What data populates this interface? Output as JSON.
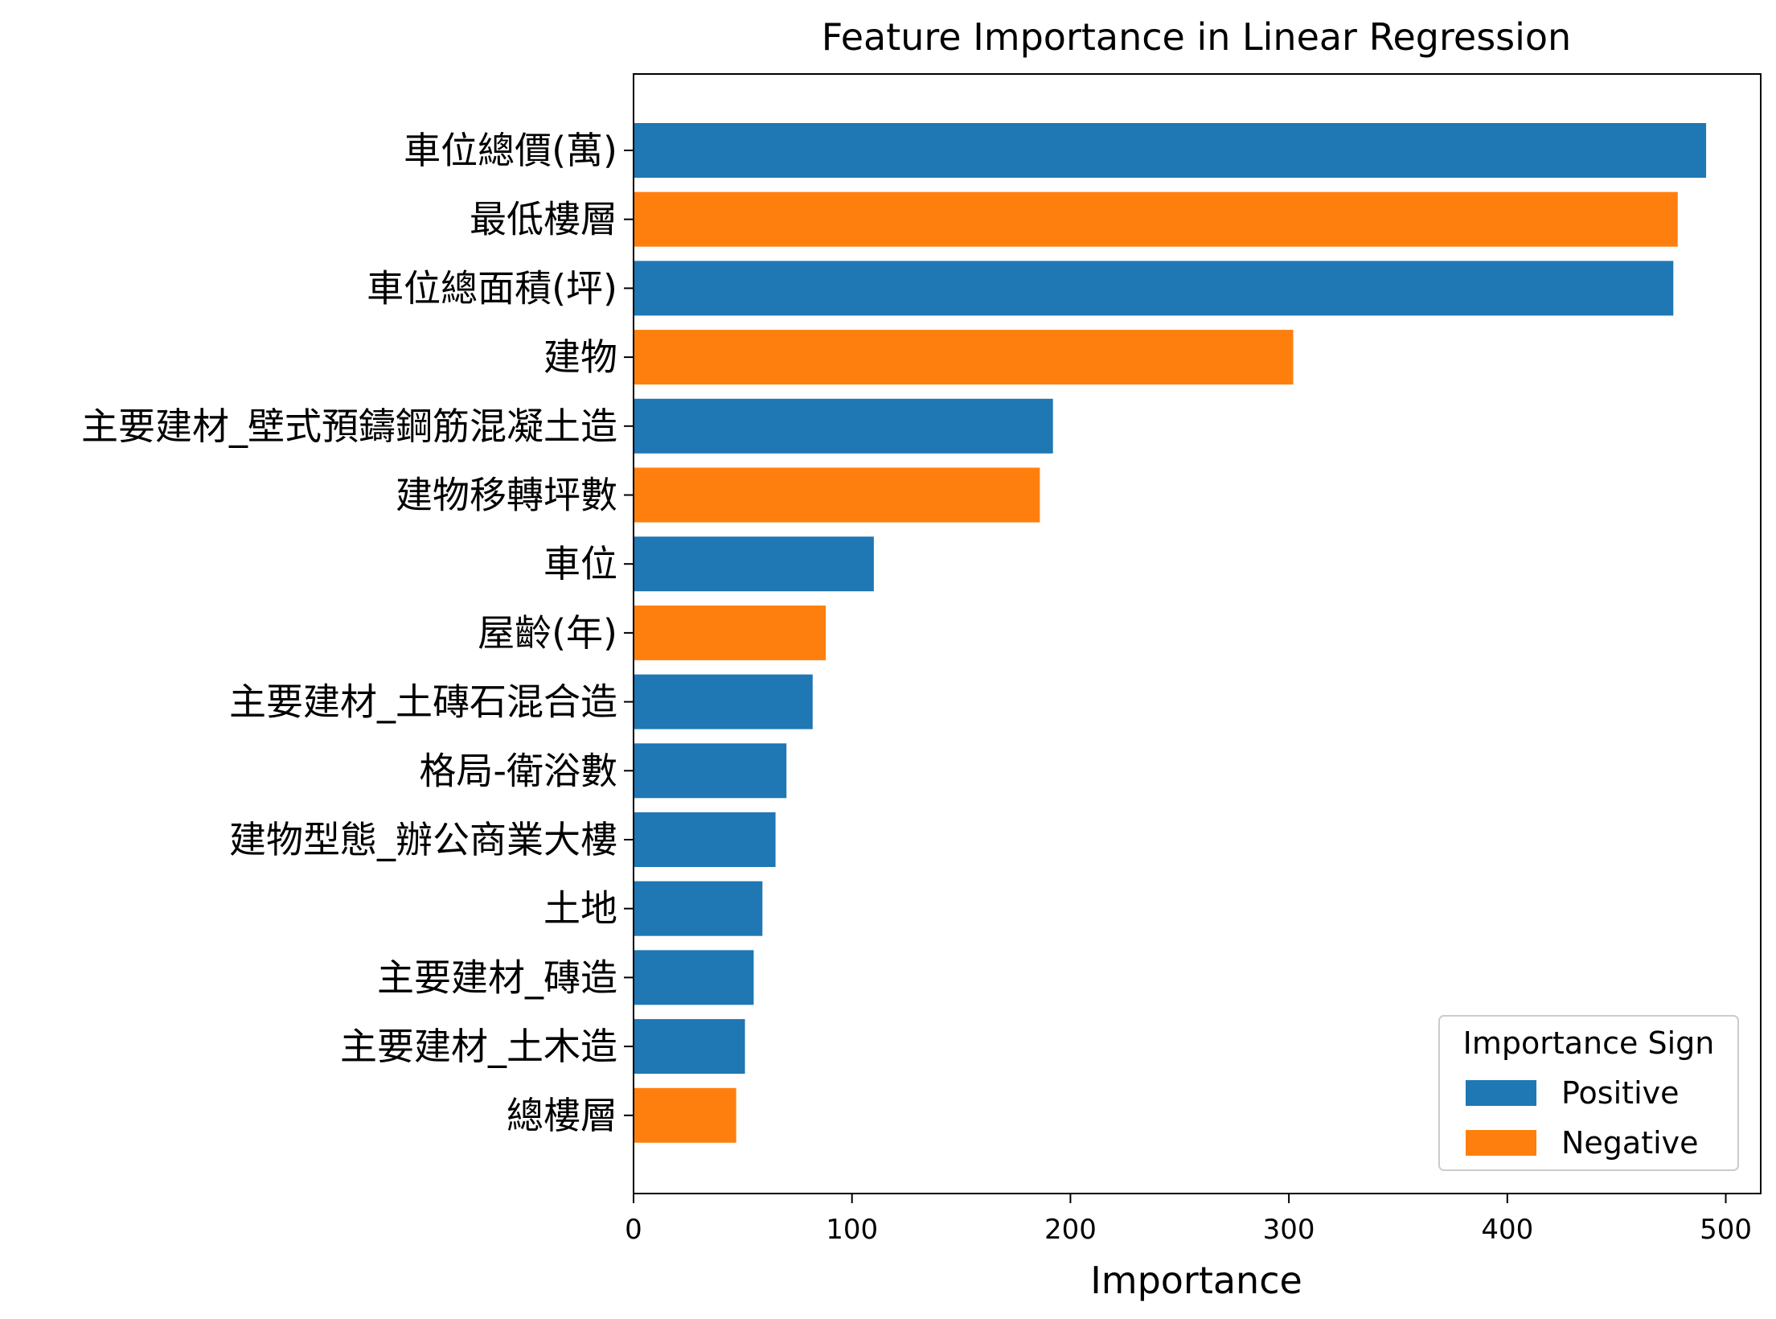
{
  "chart_data": {
    "type": "bar",
    "orientation": "horizontal",
    "title": "Feature Importance in Linear Regression",
    "xlabel": "Importance",
    "ylabel": "",
    "xlim": [
      0,
      516
    ],
    "xticks": [
      0,
      100,
      200,
      300,
      400,
      500
    ],
    "grid": false,
    "legend": {
      "title": "Importance Sign",
      "placement": "bottom-right",
      "entries": [
        {
          "label": "Positive",
          "color": "#1f77b4"
        },
        {
          "label": "Negative",
          "color": "#ff7f0e"
        }
      ]
    },
    "colors": {
      "Positive": "#1f77b4",
      "Negative": "#ff7f0e"
    },
    "bars": [
      {
        "label": "車位總價(萬)",
        "value": 491,
        "sign": "Positive"
      },
      {
        "label": "最低樓層",
        "value": 478,
        "sign": "Negative"
      },
      {
        "label": "車位總面積(坪)",
        "value": 476,
        "sign": "Positive"
      },
      {
        "label": "建物",
        "value": 302,
        "sign": "Negative"
      },
      {
        "label": "主要建材_壁式預鑄鋼筋混凝土造",
        "value": 192,
        "sign": "Positive"
      },
      {
        "label": "建物移轉坪數",
        "value": 186,
        "sign": "Negative"
      },
      {
        "label": "車位",
        "value": 110,
        "sign": "Positive"
      },
      {
        "label": "屋齡(年)",
        "value": 88,
        "sign": "Negative"
      },
      {
        "label": "主要建材_土磚石混合造",
        "value": 82,
        "sign": "Positive"
      },
      {
        "label": "格局-衛浴數",
        "value": 70,
        "sign": "Positive"
      },
      {
        "label": "建物型態_辦公商業大樓",
        "value": 65,
        "sign": "Positive"
      },
      {
        "label": "土地",
        "value": 59,
        "sign": "Positive"
      },
      {
        "label": "主要建材_磚造",
        "value": 55,
        "sign": "Positive"
      },
      {
        "label": "主要建材_土木造",
        "value": 51,
        "sign": "Positive"
      },
      {
        "label": "總樓層",
        "value": 47,
        "sign": "Negative"
      }
    ]
  }
}
